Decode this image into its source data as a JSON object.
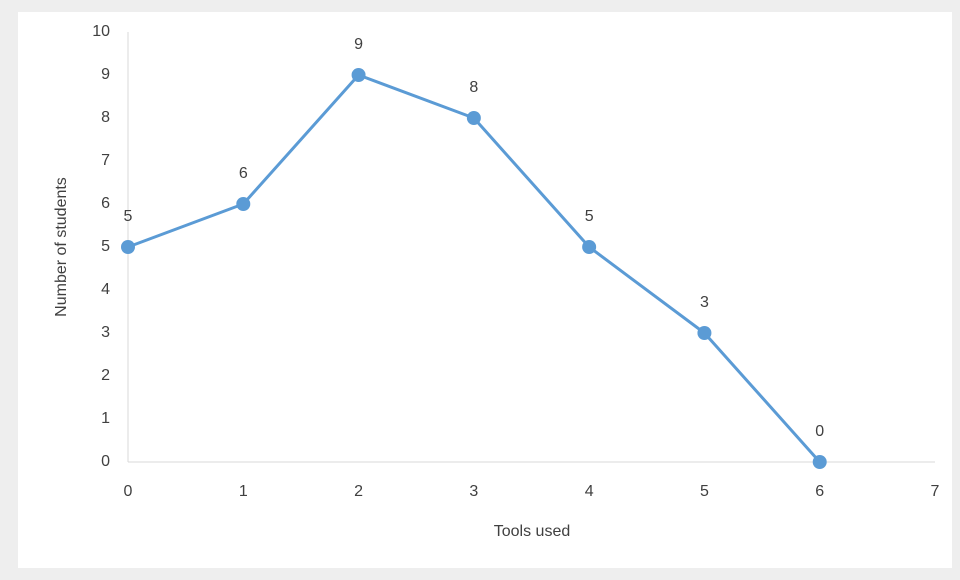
{
  "chart_data": {
    "type": "line",
    "x_label": "Tools used",
    "y_label": "Number of students",
    "x": [
      0,
      1,
      2,
      3,
      4,
      5,
      6
    ],
    "series": [
      {
        "name": "Number of students",
        "color": "#5b9bd5",
        "values": [
          5,
          6,
          9,
          8,
          5,
          3,
          0
        ]
      }
    ],
    "xlim": [
      0,
      7
    ],
    "xticks": [
      0,
      1,
      2,
      3,
      4,
      5,
      6,
      7
    ],
    "ylim": [
      0,
      10
    ],
    "yticks": [
      0,
      1,
      2,
      3,
      4,
      5,
      6,
      7,
      8,
      9,
      10
    ],
    "grid": false,
    "data_labels": true
  }
}
